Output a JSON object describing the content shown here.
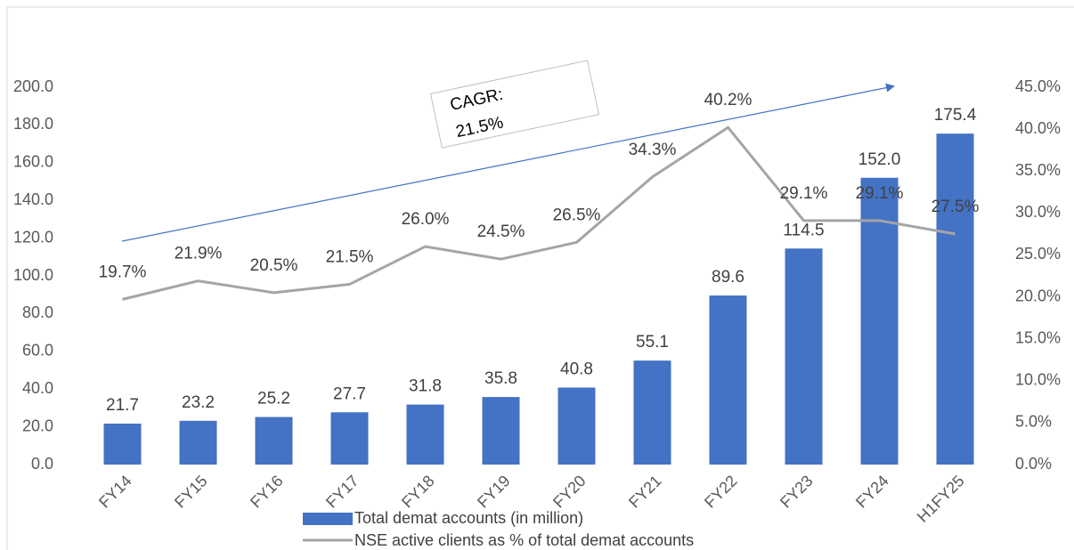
{
  "chart_data": {
    "type": "bar_line",
    "categories": [
      "FY14",
      "FY15",
      "FY16",
      "FY17",
      "FY18",
      "FY19",
      "FY20",
      "FY21",
      "FY22",
      "FY23",
      "FY24",
      "H1FY25"
    ],
    "series": [
      {
        "name": "Total demat accounts (in million)",
        "type": "bar",
        "color": "#4472c4",
        "values": [
          21.7,
          23.2,
          25.2,
          27.7,
          31.8,
          35.8,
          40.8,
          55.1,
          89.6,
          114.5,
          152.0,
          175.4
        ],
        "value_labels": [
          "21.7",
          "23.2",
          "25.2",
          "27.7",
          "31.8",
          "35.8",
          "40.8",
          "55.1",
          "89.6",
          "114.5",
          "152.0",
          "175.4"
        ]
      },
      {
        "name": "NSE active clients as % of total demat accounts",
        "type": "line",
        "axis": "y2",
        "color": "#a5a5a5",
        "values": [
          19.7,
          21.9,
          20.5,
          21.5,
          26.0,
          24.5,
          26.5,
          34.3,
          40.2,
          29.1,
          29.1,
          27.5
        ],
        "value_labels": [
          "19.7%",
          "21.9%",
          "20.5%",
          "21.5%",
          "26.0%",
          "24.5%",
          "26.5%",
          "34.3%",
          "40.2%",
          "29.1%",
          "29.1%",
          "27.5%"
        ]
      }
    ],
    "ylim": [
      0,
      200
    ],
    "yticks": [
      {
        "value": 0,
        "label": "0.0"
      },
      {
        "value": 20,
        "label": "20.0"
      },
      {
        "value": 40,
        "label": "40.0"
      },
      {
        "value": 60,
        "label": "60.0"
      },
      {
        "value": 80,
        "label": "80.0"
      },
      {
        "value": 100,
        "label": "100.0"
      },
      {
        "value": 120,
        "label": "120.0"
      },
      {
        "value": 140,
        "label": "140.0"
      },
      {
        "value": 160,
        "label": "160.0"
      },
      {
        "value": 180,
        "label": "180.0"
      },
      {
        "value": 200,
        "label": "200.0"
      }
    ],
    "y2lim": [
      0,
      45
    ],
    "y2ticks": [
      {
        "value": 0,
        "label": "0.0%"
      },
      {
        "value": 5,
        "label": "5.0%"
      },
      {
        "value": 10,
        "label": "10.0%"
      },
      {
        "value": 15,
        "label": "15.0%"
      },
      {
        "value": 20,
        "label": "20.0%"
      },
      {
        "value": 25,
        "label": "25.0%"
      },
      {
        "value": 30,
        "label": "30.0%"
      },
      {
        "value": 35,
        "label": "35.0%"
      },
      {
        "value": 40,
        "label": "40.0%"
      },
      {
        "value": 45,
        "label": "45.0%"
      }
    ],
    "annotation": [
      "CAGR:",
      "21.5%"
    ],
    "grid": false,
    "legend": "bottom"
  }
}
